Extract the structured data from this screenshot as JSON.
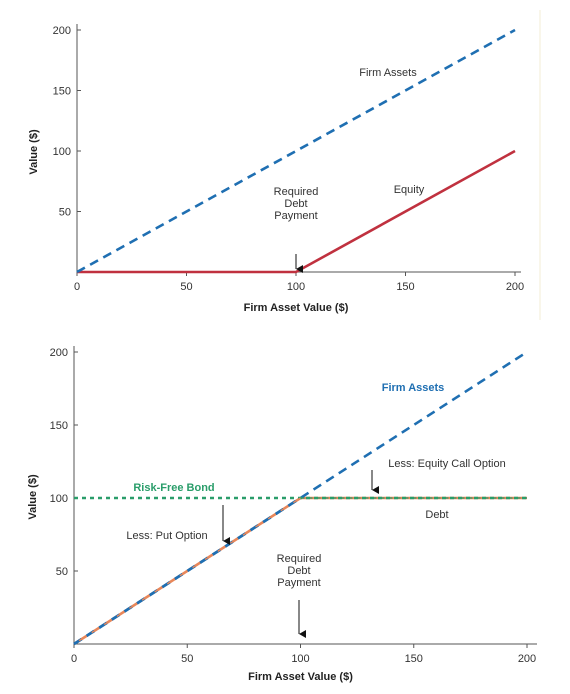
{
  "chart_data": [
    {
      "type": "line",
      "xlabel": "Firm Asset Value ($)",
      "ylabel": "Value ($)",
      "xlim": [
        0,
        200
      ],
      "ylim": [
        0,
        200
      ],
      "xticks": [
        "0",
        "50",
        "100",
        "150",
        "200"
      ],
      "yticks": [
        "50",
        "100",
        "150",
        "200"
      ],
      "grid": false,
      "series": [
        {
          "name": "Firm Assets",
          "style": "dashed",
          "color": "#1f6fb2",
          "x": [
            0,
            200
          ],
          "y": [
            0,
            200
          ]
        },
        {
          "name": "Equity",
          "style": "solid",
          "color": "#c0313f",
          "x": [
            0,
            100,
            200
          ],
          "y": [
            0,
            0,
            100
          ]
        }
      ],
      "annotations": [
        {
          "lines": [
            "Required",
            "Debt",
            "Payment"
          ],
          "x": 100,
          "y": 0,
          "arrow": true
        }
      ]
    },
    {
      "type": "line",
      "xlabel": "Firm Asset Value ($)",
      "ylabel": "Value ($)",
      "xlim": [
        0,
        200
      ],
      "ylim": [
        0,
        200
      ],
      "xticks": [
        "0",
        "50",
        "100",
        "150",
        "200"
      ],
      "yticks": [
        "50",
        "100",
        "150",
        "200"
      ],
      "grid": false,
      "series": [
        {
          "name": "Firm Assets",
          "style": "dashed",
          "color": "#1f6fb2",
          "x": [
            0,
            200
          ],
          "y": [
            0,
            200
          ]
        },
        {
          "name": "Risk-Free Bond",
          "style": "dotted",
          "color": "#2a9d6a",
          "x": [
            0,
            200
          ],
          "y": [
            100,
            100
          ]
        },
        {
          "name": "Debt",
          "style": "solid",
          "color": "#e8875a",
          "x": [
            0,
            100,
            200
          ],
          "y": [
            0,
            100,
            100
          ]
        }
      ],
      "annotations": [
        {
          "lines": [
            "Less: Equity Call Option"
          ],
          "x": 135,
          "y": 135,
          "arrow": true
        },
        {
          "lines": [
            "Less: Put Option"
          ],
          "x": 68,
          "y": 68,
          "arrow": true
        },
        {
          "lines": [
            "Required",
            "Debt",
            "Payment"
          ],
          "x": 100,
          "y": 0,
          "arrow": true
        }
      ]
    }
  ]
}
